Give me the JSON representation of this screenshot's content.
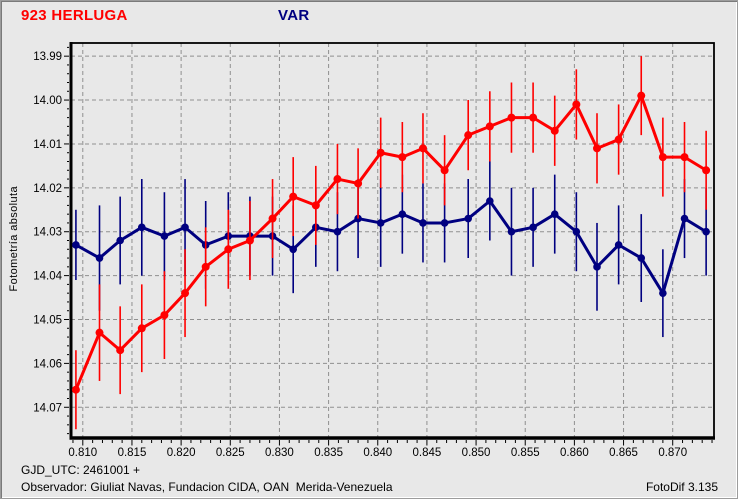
{
  "window": {
    "bg_color": "#E8E8E8",
    "grid_color": "#8F8F8F",
    "frame_color": "#000000"
  },
  "header": {
    "object_label": "923 HERLUGA",
    "object_color": "#FF0000",
    "comparison_label": "VAR",
    "comparison_color": "#000080"
  },
  "footer": {
    "gjd_line": "GJD_UTC: 2461001 +",
    "observer_line": "Observador: Giuliat Navas, Fundacion CIDA, OAN  Merida-Venezuela",
    "software": "FotoDif 3.135"
  },
  "chart_data": {
    "type": "line",
    "title": "",
    "xlabel": "",
    "ylabel": "Fotometría absoluta",
    "grid": true,
    "y_inverted": true,
    "x_range": [
      0.8088,
      0.8742
    ],
    "y_range": [
      13.987,
      14.077
    ],
    "x_ticks": [
      {
        "v": 0.81,
        "label": "0.810"
      },
      {
        "v": 0.815,
        "label": "0.815"
      },
      {
        "v": 0.82,
        "label": "0.820"
      },
      {
        "v": 0.825,
        "label": "0.825"
      },
      {
        "v": 0.83,
        "label": "0.830"
      },
      {
        "v": 0.835,
        "label": "0.835"
      },
      {
        "v": 0.84,
        "label": "0.840"
      },
      {
        "v": 0.845,
        "label": "0.845"
      },
      {
        "v": 0.85,
        "label": "0.850"
      },
      {
        "v": 0.855,
        "label": "0.855"
      },
      {
        "v": 0.86,
        "label": "0.860"
      },
      {
        "v": 0.865,
        "label": "0.865"
      },
      {
        "v": 0.87,
        "label": "0.870"
      }
    ],
    "x_minor_step": 0.001,
    "y_ticks": [
      {
        "v": 13.99,
        "label": "13.99"
      },
      {
        "v": 14.0,
        "label": "14.00"
      },
      {
        "v": 14.01,
        "label": "14.01"
      },
      {
        "v": 14.02,
        "label": "14.02"
      },
      {
        "v": 14.03,
        "label": "14.03"
      },
      {
        "v": 14.04,
        "label": "14.04"
      },
      {
        "v": 14.05,
        "label": "14.05"
      },
      {
        "v": 14.06,
        "label": "14.06"
      },
      {
        "v": 14.07,
        "label": "14.07"
      }
    ],
    "y_minor_step": 0.002,
    "x": [
      0.8093,
      0.8117,
      0.8138,
      0.816,
      0.8183,
      0.8204,
      0.8225,
      0.8248,
      0.827,
      0.8293,
      0.8314,
      0.8337,
      0.8359,
      0.838,
      0.8403,
      0.8425,
      0.8446,
      0.8468,
      0.8492,
      0.8514,
      0.8536,
      0.8558,
      0.858,
      0.8602,
      0.8623,
      0.8645,
      0.8668,
      0.869,
      0.8712,
      0.8734
    ],
    "series": [
      {
        "name": "VAR",
        "color": "#000080",
        "marker_radius": 3.8,
        "values": [
          14.033,
          14.036,
          14.032,
          14.029,
          14.031,
          14.029,
          14.033,
          14.031,
          14.031,
          14.031,
          14.034,
          14.029,
          14.03,
          14.027,
          14.028,
          14.026,
          14.028,
          14.028,
          14.027,
          14.023,
          14.03,
          14.029,
          14.026,
          14.03,
          14.038,
          14.033,
          14.036,
          14.044,
          14.027,
          14.03
        ],
        "errors": [
          0.008,
          0.012,
          0.01,
          0.011,
          0.01,
          0.011,
          0.01,
          0.01,
          0.009,
          0.009,
          0.01,
          0.009,
          0.009,
          0.009,
          0.01,
          0.009,
          0.009,
          0.009,
          0.009,
          0.009,
          0.01,
          0.009,
          0.009,
          0.009,
          0.01,
          0.009,
          0.01,
          0.01,
          0.009,
          0.01
        ]
      },
      {
        "name": "923 HERLUGA",
        "color": "#FF0000",
        "marker_radius": 4.0,
        "values": [
          14.066,
          14.053,
          14.057,
          14.052,
          14.049,
          14.044,
          14.038,
          14.034,
          14.032,
          14.027,
          14.022,
          14.024,
          14.018,
          14.019,
          14.012,
          14.013,
          14.011,
          14.016,
          14.008,
          14.006,
          14.004,
          14.004,
          14.007,
          14.001,
          14.011,
          14.009,
          13.999,
          14.013,
          14.013,
          14.016
        ],
        "errors": [
          0.009,
          0.011,
          0.01,
          0.01,
          0.01,
          0.01,
          0.009,
          0.009,
          0.009,
          0.009,
          0.009,
          0.009,
          0.008,
          0.008,
          0.008,
          0.008,
          0.008,
          0.008,
          0.008,
          0.008,
          0.008,
          0.008,
          0.008,
          0.008,
          0.008,
          0.008,
          0.009,
          0.009,
          0.008,
          0.009
        ]
      }
    ]
  }
}
